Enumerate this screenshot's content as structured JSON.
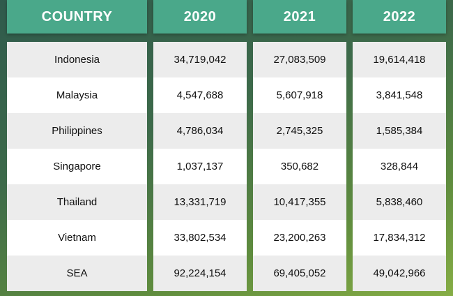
{
  "headers": [
    "COUNTRY",
    "2020",
    "2021",
    "2022"
  ],
  "rows": [
    {
      "country": "Indonesia",
      "y2020": "34,719,042",
      "y2021": "27,083,509",
      "y2022": "19,614,418"
    },
    {
      "country": "Malaysia",
      "y2020": "4,547,688",
      "y2021": "5,607,918",
      "y2022": "3,841,548"
    },
    {
      "country": "Philippines",
      "y2020": "4,786,034",
      "y2021": "2,745,325",
      "y2022": "1,585,384"
    },
    {
      "country": "Singapore",
      "y2020": "1,037,137",
      "y2021": "350,682",
      "y2022": "328,844"
    },
    {
      "country": "Thailand",
      "y2020": "13,331,719",
      "y2021": "10,417,355",
      "y2022": "5,838,460"
    },
    {
      "country": "Vietnam",
      "y2020": "33,802,534",
      "y2021": "23,200,263",
      "y2022": "17,834,312"
    },
    {
      "country": "SEA",
      "y2020": "92,224,154",
      "y2021": "69,405,052",
      "y2022": "49,042,966"
    }
  ],
  "colors": {
    "header_bg": "#4aa88a",
    "row_alt": "#ececec",
    "row_plain": "#ffffff"
  }
}
